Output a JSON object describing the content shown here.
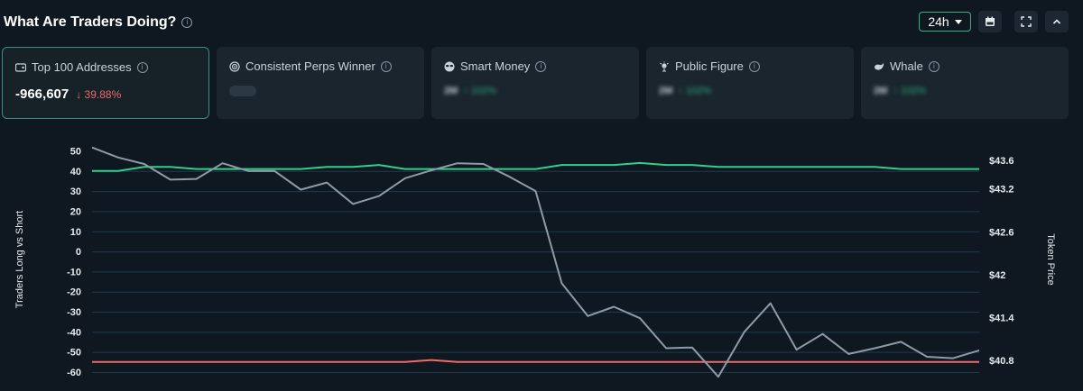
{
  "header": {
    "title": "What Are Traders Doing?",
    "timeframe": "24h"
  },
  "cards": [
    {
      "label": "Top 100 Addresses",
      "icon": "wallet-icon",
      "value": "-966,607",
      "change": "↓ 39.88%",
      "change_color": "#ef6a6a",
      "active": true
    },
    {
      "label": "Consistent Perps Winner",
      "icon": "target-icon",
      "loading": true
    },
    {
      "label": "Smart Money",
      "icon": "sunglasses-icon",
      "value": "2M",
      "change": "↑ 102%",
      "blurred": true
    },
    {
      "label": "Public Figure",
      "icon": "spotlight-icon",
      "value": "2M",
      "change": "↑ 102%",
      "blurred": true
    },
    {
      "label": "Whale",
      "icon": "whale-icon",
      "value": "2M",
      "change": "↑ 102%",
      "blurred": true
    }
  ],
  "colors": {
    "long": "#2fcf8c",
    "short": "#ef6a6a",
    "price": "#8e9aa6",
    "accent": "#2fb37f",
    "grid": "#1f3a4d"
  },
  "chart_data": {
    "type": "line",
    "ylabel": "Traders Long vs Short",
    "ylabel_right": "Token Price",
    "y_ticks": [
      50,
      40,
      30,
      20,
      10,
      0,
      -10,
      -20,
      -30,
      -40,
      -50,
      -60
    ],
    "y_tick_labels": [
      "50",
      "40",
      "30",
      "20",
      "10",
      "0",
      "-10",
      "-20",
      "-30",
      "-40",
      "-50",
      "-60"
    ],
    "ylim": [
      -60,
      52
    ],
    "y2_ticks": [
      43.6,
      43.2,
      42.6,
      42,
      41.4,
      40.8
    ],
    "y2_tick_labels": [
      "$43.6",
      "$43.2",
      "$42.6",
      "$42",
      "$41.4",
      "$40.8"
    ],
    "y2lim": [
      40.8,
      43.6
    ],
    "grid": true,
    "series": [
      {
        "key": "long",
        "axis": "left",
        "values": [
          40,
          40,
          42,
          42,
          41,
          41,
          41,
          41,
          41,
          42,
          42,
          43,
          41,
          41,
          41,
          41,
          41,
          41,
          43,
          43,
          43,
          44,
          43,
          43,
          42,
          42,
          42,
          42,
          42,
          42,
          42,
          41,
          41,
          41,
          41
        ]
      },
      {
        "key": "short",
        "axis": "left",
        "values": [
          -55,
          -55,
          -55,
          -55,
          -55,
          -55,
          -55,
          -55,
          -55,
          -55,
          -55,
          -55,
          -55,
          -54,
          -55,
          -55,
          -55,
          -55,
          -55,
          -55,
          -55,
          -55,
          -55,
          -55,
          -55,
          -55,
          -55,
          -55,
          -55,
          -55,
          -55,
          -55,
          -55,
          -55,
          -55
        ]
      },
      {
        "key": "price",
        "axis": "right",
        "values": [
          43.78,
          43.64,
          43.55,
          43.33,
          43.34,
          43.56,
          43.45,
          43.45,
          43.19,
          43.29,
          42.99,
          43.1,
          43.35,
          43.46,
          43.56,
          43.55,
          43.37,
          43.17,
          41.88,
          41.42,
          41.55,
          41.39,
          40.97,
          40.98,
          40.57,
          41.2,
          41.6,
          40.95,
          41.17,
          40.89,
          40.97,
          41.06,
          40.85,
          40.83,
          40.94
        ]
      }
    ]
  }
}
